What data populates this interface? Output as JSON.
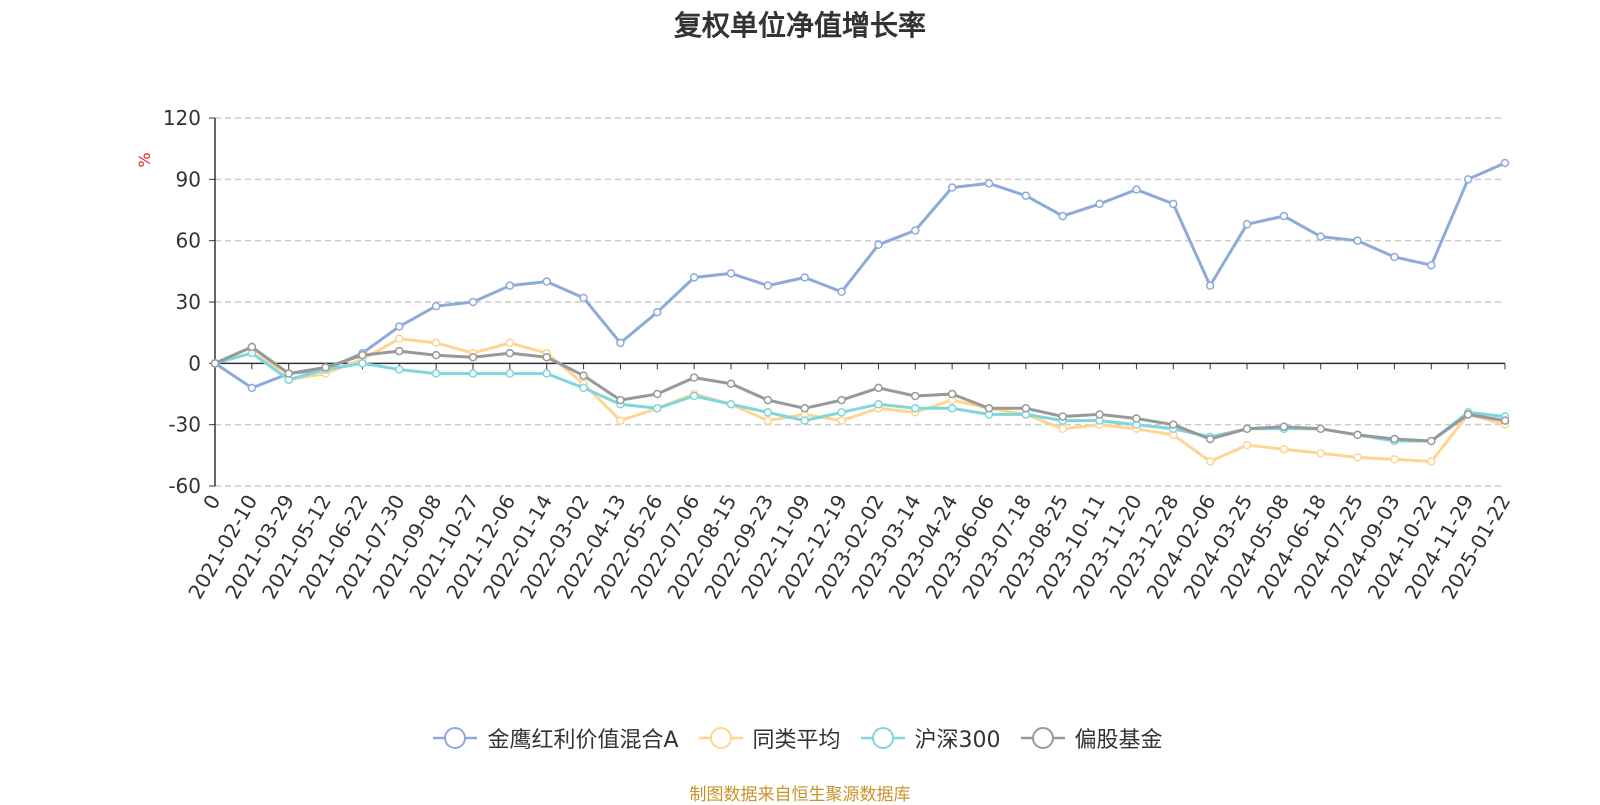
{
  "chart_data": {
    "type": "line",
    "title": "复权单位净值增长率",
    "ylabel": "%",
    "ylim": [
      -60,
      120
    ],
    "yticks": [
      -60,
      -30,
      0,
      30,
      60,
      90,
      120
    ],
    "grid": true,
    "legend_position": "bottom",
    "x": [
      "0",
      "2021-02-10",
      "2021-03-29",
      "2021-05-12",
      "2021-06-22",
      "2021-07-30",
      "2021-09-08",
      "2021-10-27",
      "2021-12-06",
      "2022-01-14",
      "2022-03-02",
      "2022-04-13",
      "2022-05-26",
      "2022-07-06",
      "2022-08-15",
      "2022-09-23",
      "2022-11-09",
      "2022-12-19",
      "2023-02-02",
      "2023-03-14",
      "2023-04-24",
      "2023-06-06",
      "2023-07-18",
      "2023-08-25",
      "2023-10-11",
      "2023-11-20",
      "2023-12-28",
      "2024-02-06",
      "2024-03-25",
      "2024-05-08",
      "2024-06-18",
      "2024-07-25",
      "2024-09-03",
      "2024-10-22",
      "2024-11-29",
      "2025-01-22"
    ],
    "series": [
      {
        "name": "金鹰红利价值混合A",
        "color": "#8eaadb",
        "values": [
          0,
          -12,
          -5,
          -3,
          5,
          18,
          28,
          30,
          38,
          40,
          32,
          10,
          25,
          42,
          44,
          38,
          42,
          35,
          58,
          65,
          86,
          88,
          82,
          72,
          78,
          85,
          78,
          38,
          68,
          72,
          62,
          60,
          52,
          48,
          90,
          98
        ]
      },
      {
        "name": "同类平均",
        "color": "#ffd591",
        "values": [
          0,
          8,
          -8,
          -5,
          2,
          12,
          10,
          5,
          10,
          5,
          -10,
          -28,
          -22,
          -15,
          -20,
          -28,
          -25,
          -28,
          -22,
          -24,
          -18,
          -22,
          -25,
          -32,
          -30,
          -32,
          -35,
          -48,
          -40,
          -42,
          -44,
          -46,
          -47,
          -48,
          -25,
          -30
        ]
      },
      {
        "name": "沪深300",
        "color": "#7fd6dc",
        "values": [
          0,
          5,
          -8,
          -3,
          0,
          -3,
          -5,
          -5,
          -5,
          -5,
          -12,
          -20,
          -22,
          -16,
          -20,
          -24,
          -28,
          -24,
          -20,
          -22,
          -22,
          -25,
          -25,
          -28,
          -28,
          -30,
          -32,
          -36,
          -32,
          -32,
          -32,
          -35,
          -38,
          -38,
          -24,
          -26
        ]
      },
      {
        "name": "偏股基金",
        "color": "#999999",
        "values": [
          0,
          8,
          -5,
          -2,
          4,
          6,
          4,
          3,
          5,
          3,
          -6,
          -18,
          -15,
          -7,
          -10,
          -18,
          -22,
          -18,
          -12,
          -16,
          -15,
          -22,
          -22,
          -26,
          -25,
          -27,
          -30,
          -37,
          -32,
          -31,
          -32,
          -35,
          -37,
          -38,
          -25,
          -28
        ]
      }
    ]
  },
  "footer_source": "制图数据来自恒生聚源数据库"
}
